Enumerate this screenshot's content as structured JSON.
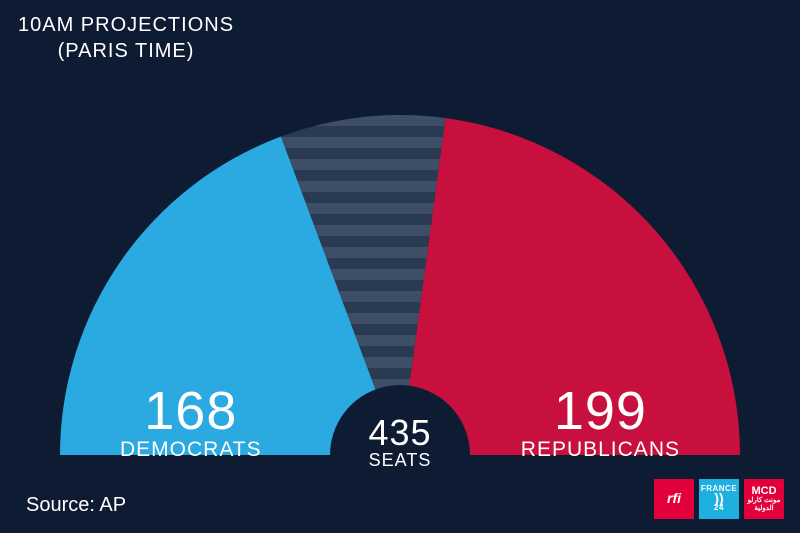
{
  "header": {
    "line1": "10AM PROJECTIONS",
    "line2": "(PARIS TIME)"
  },
  "chart": {
    "type": "hemicycle",
    "total_seats": 435,
    "total_label": "SEATS",
    "outer_radius": 340,
    "inner_radius": 70,
    "background_color": "#0d1b33",
    "segments": [
      {
        "name": "democrats",
        "label": "DEMOCRATS",
        "value": 168,
        "color": "#2aaae1",
        "start_deg": 180,
        "end_deg": 110.5
      },
      {
        "name": "undecided",
        "label": "",
        "value": 68,
        "stripe_color_a": "#3d4e66",
        "stripe_color_b": "#2a3a52",
        "stripe_width": 11,
        "start_deg": 110.5,
        "end_deg": 82.3
      },
      {
        "name": "republicans",
        "label": "REPUBLICANS",
        "value": 199,
        "color": "#c8103e",
        "start_deg": 82.3,
        "end_deg": 0
      }
    ],
    "center_circle_color": "#0d1b33",
    "text_color": "#ffffff",
    "count_fontsize": 54,
    "label_fontsize": 21,
    "center_count_fontsize": 36,
    "center_label_fontsize": 18
  },
  "source": {
    "prefix": "Source:",
    "value": "AP"
  },
  "logos": {
    "rfi": "rfi",
    "f24_top": "FRANCE",
    "f24_num": "24",
    "mcd_top": "MCD",
    "mcd_ar1": "مونت كارلو",
    "mcd_ar2": "الدولية"
  }
}
